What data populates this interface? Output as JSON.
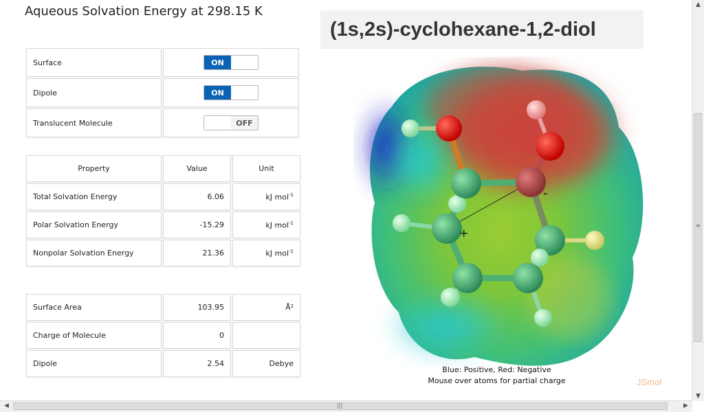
{
  "heading": "Aqueous Solvation Energy at 298.15 K",
  "molecule_name": "(1s,2s)-cyclohexane-1,2-diol",
  "toggles": [
    {
      "label": "Surface",
      "state": "ON"
    },
    {
      "label": "Dipole",
      "state": "ON"
    },
    {
      "label": "Translucent Molecule",
      "state": "OFF"
    }
  ],
  "energy_table": {
    "headers": {
      "property": "Property",
      "value": "Value",
      "unit": "Unit"
    },
    "rows": [
      {
        "property": "Total Solvation Energy",
        "value": "6.06",
        "unit": "kJ mol",
        "unit_sup": "-1"
      },
      {
        "property": "Polar Solvation Energy",
        "value": "-15.29",
        "unit": "kJ mol",
        "unit_sup": "-1"
      },
      {
        "property": "Nonpolar Solvation Energy",
        "value": "21.36",
        "unit": "kJ mol",
        "unit_sup": "-1"
      }
    ]
  },
  "props_table": {
    "rows": [
      {
        "property": "Surface Area",
        "value": "103.95",
        "unit": "Å²"
      },
      {
        "property": "Charge of Molecule",
        "value": "0",
        "unit": ""
      },
      {
        "property": "Dipole",
        "value": "2.54",
        "unit": "Debye"
      }
    ]
  },
  "viewer": {
    "plus_sign": "+",
    "minus_sign": "-",
    "legend_line1": "Blue: Positive, Red: Negative",
    "legend_line2": "Mouse over atoms for partial charge",
    "brand": "JSmol"
  },
  "icons": {
    "scroll_up": "scroll-up-arrow-icon",
    "scroll_down": "scroll-down-arrow-icon",
    "scroll_left": "scroll-left-arrow-icon",
    "scroll_right": "scroll-right-arrow-icon"
  },
  "colors": {
    "toggle_on": "#0a63b3",
    "jsmol_brand": "#f2b98a"
  }
}
